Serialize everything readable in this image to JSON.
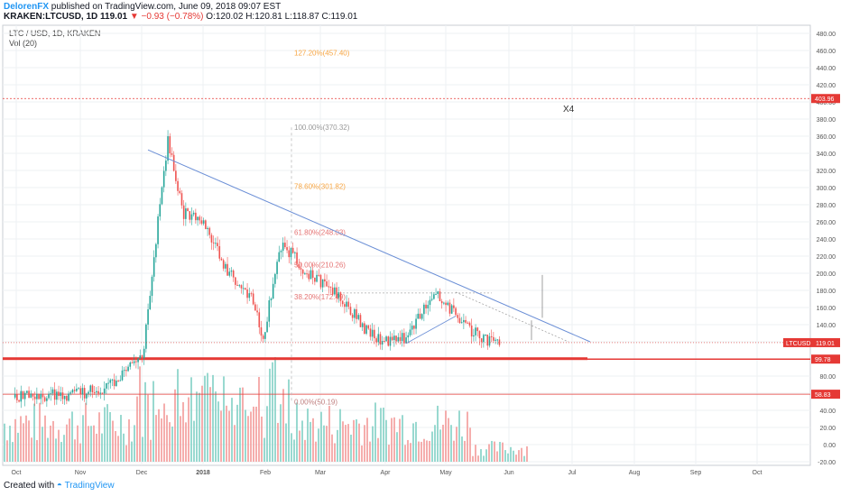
{
  "header": {
    "author": "DelorenFX",
    "published": "published on TradingView.com, June 09, 2018 09:07 EST",
    "symbol": "KRAKEN:LTCUSD, 1D",
    "price": "119.01",
    "change": "▼ −0.93 (−0.78%)",
    "ohlc": "O:120.02 H:120.81 L:118.87 C:119.01"
  },
  "legend": {
    "title": "LTC / USD, 1D, KRAKEN",
    "vol": "Vol (20)"
  },
  "footer": {
    "created": "Created with",
    "brand": "TradingView"
  },
  "colors": {
    "up": "#26a69a",
    "down": "#ef5350",
    "fib": "#f7a542",
    "hline": "#e53935",
    "trend": "#6b8fd6"
  },
  "chart_data": {
    "type": "candlestick",
    "y_ticks": [
      "480.00",
      "460.00",
      "440.00",
      "420.00",
      "400.00",
      "380.00",
      "360.00",
      "340.00",
      "320.00",
      "300.00",
      "280.00",
      "260.00",
      "240.00",
      "220.00",
      "200.00",
      "180.00",
      "160.00",
      "140.00",
      "120.00",
      "100.00",
      "80.00",
      "60.00",
      "40.00",
      "20.00",
      "0.00",
      "-20.00"
    ],
    "x_ticks": [
      "Oct",
      "Nov",
      "Dec",
      "2018",
      "Feb",
      "Mar",
      "Apr",
      "May",
      "Jun",
      "Jul",
      "Aug",
      "Sep",
      "Oct"
    ],
    "fib_levels": [
      {
        "label": "127.20%(457.40)",
        "value": 457.4
      },
      {
        "label": "100.00%(370.32)",
        "value": 370.32
      },
      {
        "label": "78.60%(301.82)",
        "value": 301.82
      },
      {
        "label": "61.80%(248.03)",
        "value": 248.03
      },
      {
        "label": "50.00%(210.26)",
        "value": 210.26
      },
      {
        "label": "38.20%(172.49)",
        "value": 172.49
      },
      {
        "label": "0.00%(50.19)",
        "value": 50.19
      }
    ],
    "hlines": [
      {
        "label": "403.96",
        "value": 403.96
      },
      {
        "label": "99.78",
        "value": 99.78
      },
      {
        "label": "58.83",
        "value": 58.83
      }
    ],
    "current": {
      "symbol": "LTCUSD",
      "price": "119.01",
      "value": 119.01
    },
    "annotation": "X4",
    "price_path": [
      {
        "d": "2017-10-01",
        "p": 55
      },
      {
        "d": "2017-10-20",
        "p": 57
      },
      {
        "d": "2017-11-05",
        "p": 60
      },
      {
        "d": "2017-11-20",
        "p": 70
      },
      {
        "d": "2017-11-28",
        "p": 88
      },
      {
        "d": "2017-12-06",
        "p": 100
      },
      {
        "d": "2017-12-12",
        "p": 225
      },
      {
        "d": "2017-12-19",
        "p": 355
      },
      {
        "d": "2017-12-27",
        "p": 270
      },
      {
        "d": "2018-01-06",
        "p": 260
      },
      {
        "d": "2018-01-18",
        "p": 205
      },
      {
        "d": "2018-02-01",
        "p": 170
      },
      {
        "d": "2018-02-06",
        "p": 125
      },
      {
        "d": "2018-02-16",
        "p": 235
      },
      {
        "d": "2018-03-01",
        "p": 200
      },
      {
        "d": "2018-03-15",
        "p": 180
      },
      {
        "d": "2018-03-31",
        "p": 135
      },
      {
        "d": "2018-04-10",
        "p": 120
      },
      {
        "d": "2018-04-20",
        "p": 125
      },
      {
        "d": "2018-05-01",
        "p": 160
      },
      {
        "d": "2018-05-06",
        "p": 180
      },
      {
        "d": "2018-05-20",
        "p": 140
      },
      {
        "d": "2018-06-01",
        "p": 122
      },
      {
        "d": "2018-06-09",
        "p": 119
      }
    ]
  }
}
